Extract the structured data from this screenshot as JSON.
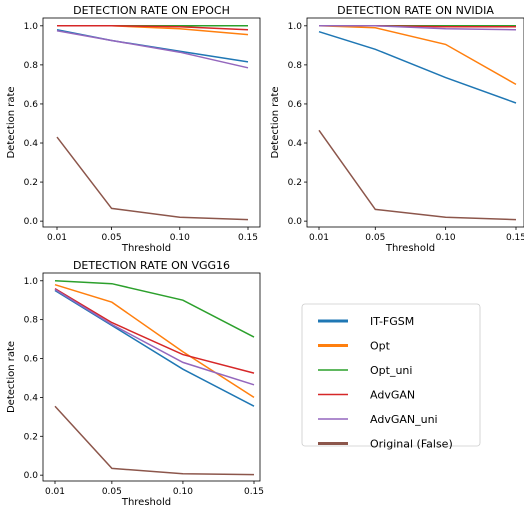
{
  "chart_data": [
    {
      "type": "line",
      "title": "DETECTION RATE ON EPOCH",
      "xlabel": "Threshold",
      "ylabel": "Detection rate",
      "x": [
        0.01,
        0.05,
        0.1,
        0.15
      ],
      "x_ticks": [
        "0.01",
        "0.05",
        "0.10",
        "0.15"
      ],
      "ylim": [
        -0.03,
        1.04
      ],
      "y_ticks": [
        "0.0",
        "0.2",
        "0.4",
        "0.6",
        "0.8",
        "1.0"
      ],
      "series": [
        {
          "name": "IT-FGSM",
          "color": "#1f77b4",
          "values": [
            0.98,
            0.925,
            0.87,
            0.815
          ]
        },
        {
          "name": "Opt",
          "color": "#ff7f0e",
          "values": [
            1.0,
            1.0,
            0.985,
            0.955
          ]
        },
        {
          "name": "Opt_uni",
          "color": "#2ca02c",
          "values": [
            1.0,
            1.0,
            1.0,
            1.0
          ]
        },
        {
          "name": "AdvGAN",
          "color": "#d62728",
          "values": [
            1.0,
            1.0,
            0.995,
            0.98
          ]
        },
        {
          "name": "AdvGAN_uni",
          "color": "#9467bd",
          "values": [
            0.975,
            0.925,
            0.865,
            0.785
          ]
        },
        {
          "name": "Original (False)",
          "color": "#8c564b",
          "values": [
            0.43,
            0.065,
            0.02,
            0.008
          ]
        }
      ]
    },
    {
      "type": "line",
      "title": "DETECTION RATE ON NVIDIA",
      "xlabel": "Threshold",
      "ylabel": "Detection rate",
      "x": [
        0.01,
        0.05,
        0.1,
        0.15
      ],
      "x_ticks": [
        "0.01",
        "0.05",
        "0.10",
        "0.15"
      ],
      "ylim": [
        -0.03,
        1.04
      ],
      "y_ticks": [
        "0.0",
        "0.2",
        "0.4",
        "0.6",
        "0.8",
        "1.0"
      ],
      "series": [
        {
          "name": "IT-FGSM",
          "color": "#1f77b4",
          "values": [
            0.97,
            0.88,
            0.735,
            0.605
          ]
        },
        {
          "name": "Opt",
          "color": "#ff7f0e",
          "values": [
            1.0,
            0.99,
            0.905,
            0.7
          ]
        },
        {
          "name": "Opt_uni",
          "color": "#2ca02c",
          "values": [
            1.0,
            1.0,
            1.0,
            1.0
          ]
        },
        {
          "name": "AdvGAN",
          "color": "#d62728",
          "values": [
            1.0,
            1.0,
            0.995,
            0.995
          ]
        },
        {
          "name": "AdvGAN_uni",
          "color": "#9467bd",
          "values": [
            1.0,
            1.0,
            0.985,
            0.98
          ]
        },
        {
          "name": "Original (False)",
          "color": "#8c564b",
          "values": [
            0.465,
            0.06,
            0.02,
            0.008
          ]
        }
      ]
    },
    {
      "type": "line",
      "title": "DETECTION RATE ON VGG16",
      "xlabel": "Threshold",
      "ylabel": "Detection rate",
      "x": [
        0.01,
        0.05,
        0.1,
        0.15
      ],
      "x_ticks": [
        "0.01",
        "0.05",
        "0.10",
        "0.15"
      ],
      "ylim": [
        -0.03,
        1.04
      ],
      "y_ticks": [
        "0.0",
        "0.2",
        "0.4",
        "0.6",
        "0.8",
        "1.0"
      ],
      "series": [
        {
          "name": "IT-FGSM",
          "color": "#1f77b4",
          "values": [
            0.95,
            0.77,
            0.545,
            0.355
          ]
        },
        {
          "name": "Opt",
          "color": "#ff7f0e",
          "values": [
            0.98,
            0.89,
            0.635,
            0.4
          ]
        },
        {
          "name": "Opt_uni",
          "color": "#2ca02c",
          "values": [
            1.0,
            0.985,
            0.9,
            0.71
          ]
        },
        {
          "name": "AdvGAN",
          "color": "#d62728",
          "values": [
            0.96,
            0.785,
            0.62,
            0.525
          ]
        },
        {
          "name": "AdvGAN_uni",
          "color": "#9467bd",
          "values": [
            0.955,
            0.775,
            0.58,
            0.465
          ]
        },
        {
          "name": "Original (False)",
          "color": "#8c564b",
          "values": [
            0.355,
            0.035,
            0.007,
            0.003
          ]
        }
      ]
    }
  ],
  "legend": {
    "placement": "lower-right",
    "items": [
      {
        "label": "IT-FGSM",
        "color": "#1f77b4"
      },
      {
        "label": "Opt",
        "color": "#ff7f0e"
      },
      {
        "label": "Opt_uni",
        "color": "#2ca02c"
      },
      {
        "label": "AdvGAN",
        "color": "#d62728"
      },
      {
        "label": "AdvGAN_uni",
        "color": "#9467bd"
      },
      {
        "label": "Original (False)",
        "color": "#8c564b"
      }
    ]
  }
}
